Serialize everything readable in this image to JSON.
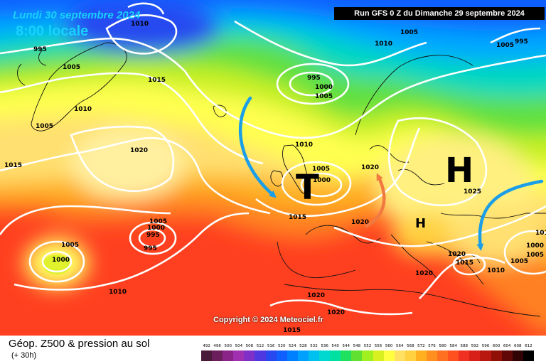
{
  "header": {
    "date": "Lundi 30 septembre 2024",
    "time": "8:00 locale",
    "run": "Run GFS 0 Z du Dimanche 29 septembre 2024"
  },
  "copyright": "Copyright © 2024 Meteociel.fr",
  "footer": {
    "title": "Géop. Z500 & pression au sol",
    "subtitle": "(+ 30h)"
  },
  "scale": {
    "labels": [
      "492",
      "496",
      "500",
      "504",
      "508",
      "512",
      "516",
      "520",
      "524",
      "528",
      "532",
      "536",
      "540",
      "544",
      "548",
      "552",
      "556",
      "560",
      "564",
      "568",
      "572",
      "576",
      "580",
      "584",
      "588",
      "592",
      "596",
      "600",
      "604",
      "608",
      "612"
    ],
    "colors": [
      "#4a1a3a",
      "#6a1e5a",
      "#8a2488",
      "#a030b0",
      "#8030c8",
      "#5038e0",
      "#2848f0",
      "#1060ff",
      "#0080ff",
      "#00a0ff",
      "#00c0f0",
      "#00d8d0",
      "#00e0a0",
      "#20e060",
      "#60e030",
      "#a0f020",
      "#d8f020",
      "#ffff40",
      "#ffe060",
      "#ffd040",
      "#ffb020",
      "#ff9020",
      "#ff7020",
      "#ff5020",
      "#f03020",
      "#d82018",
      "#b81810",
      "#901008",
      "#600808",
      "#300404",
      "#000000"
    ]
  },
  "map": {
    "isobars": [
      "995",
      "1010",
      "1005",
      "1000",
      "1015",
      "1010",
      "1005",
      "1020",
      "1015",
      "995",
      "1000",
      "1005",
      "1010",
      "1015",
      "1000",
      "1005",
      "1005",
      "1000",
      "995",
      "995",
      "1010",
      "1005",
      "1000",
      "1020",
      "1020",
      "1025",
      "1010",
      "1015",
      "1010",
      "1020",
      "1020",
      "1020",
      "1015",
      "1020",
      "1005",
      "1000",
      "1005",
      "1010",
      "1005",
      "1005",
      "995"
    ],
    "centers": [
      {
        "symbol": "T",
        "label": "T"
      },
      {
        "symbol": "H",
        "label": "H"
      },
      {
        "symbol": "H-small",
        "label": "H"
      }
    ],
    "arrow_colors": [
      "#1a9ee8",
      "#f07a40"
    ]
  }
}
